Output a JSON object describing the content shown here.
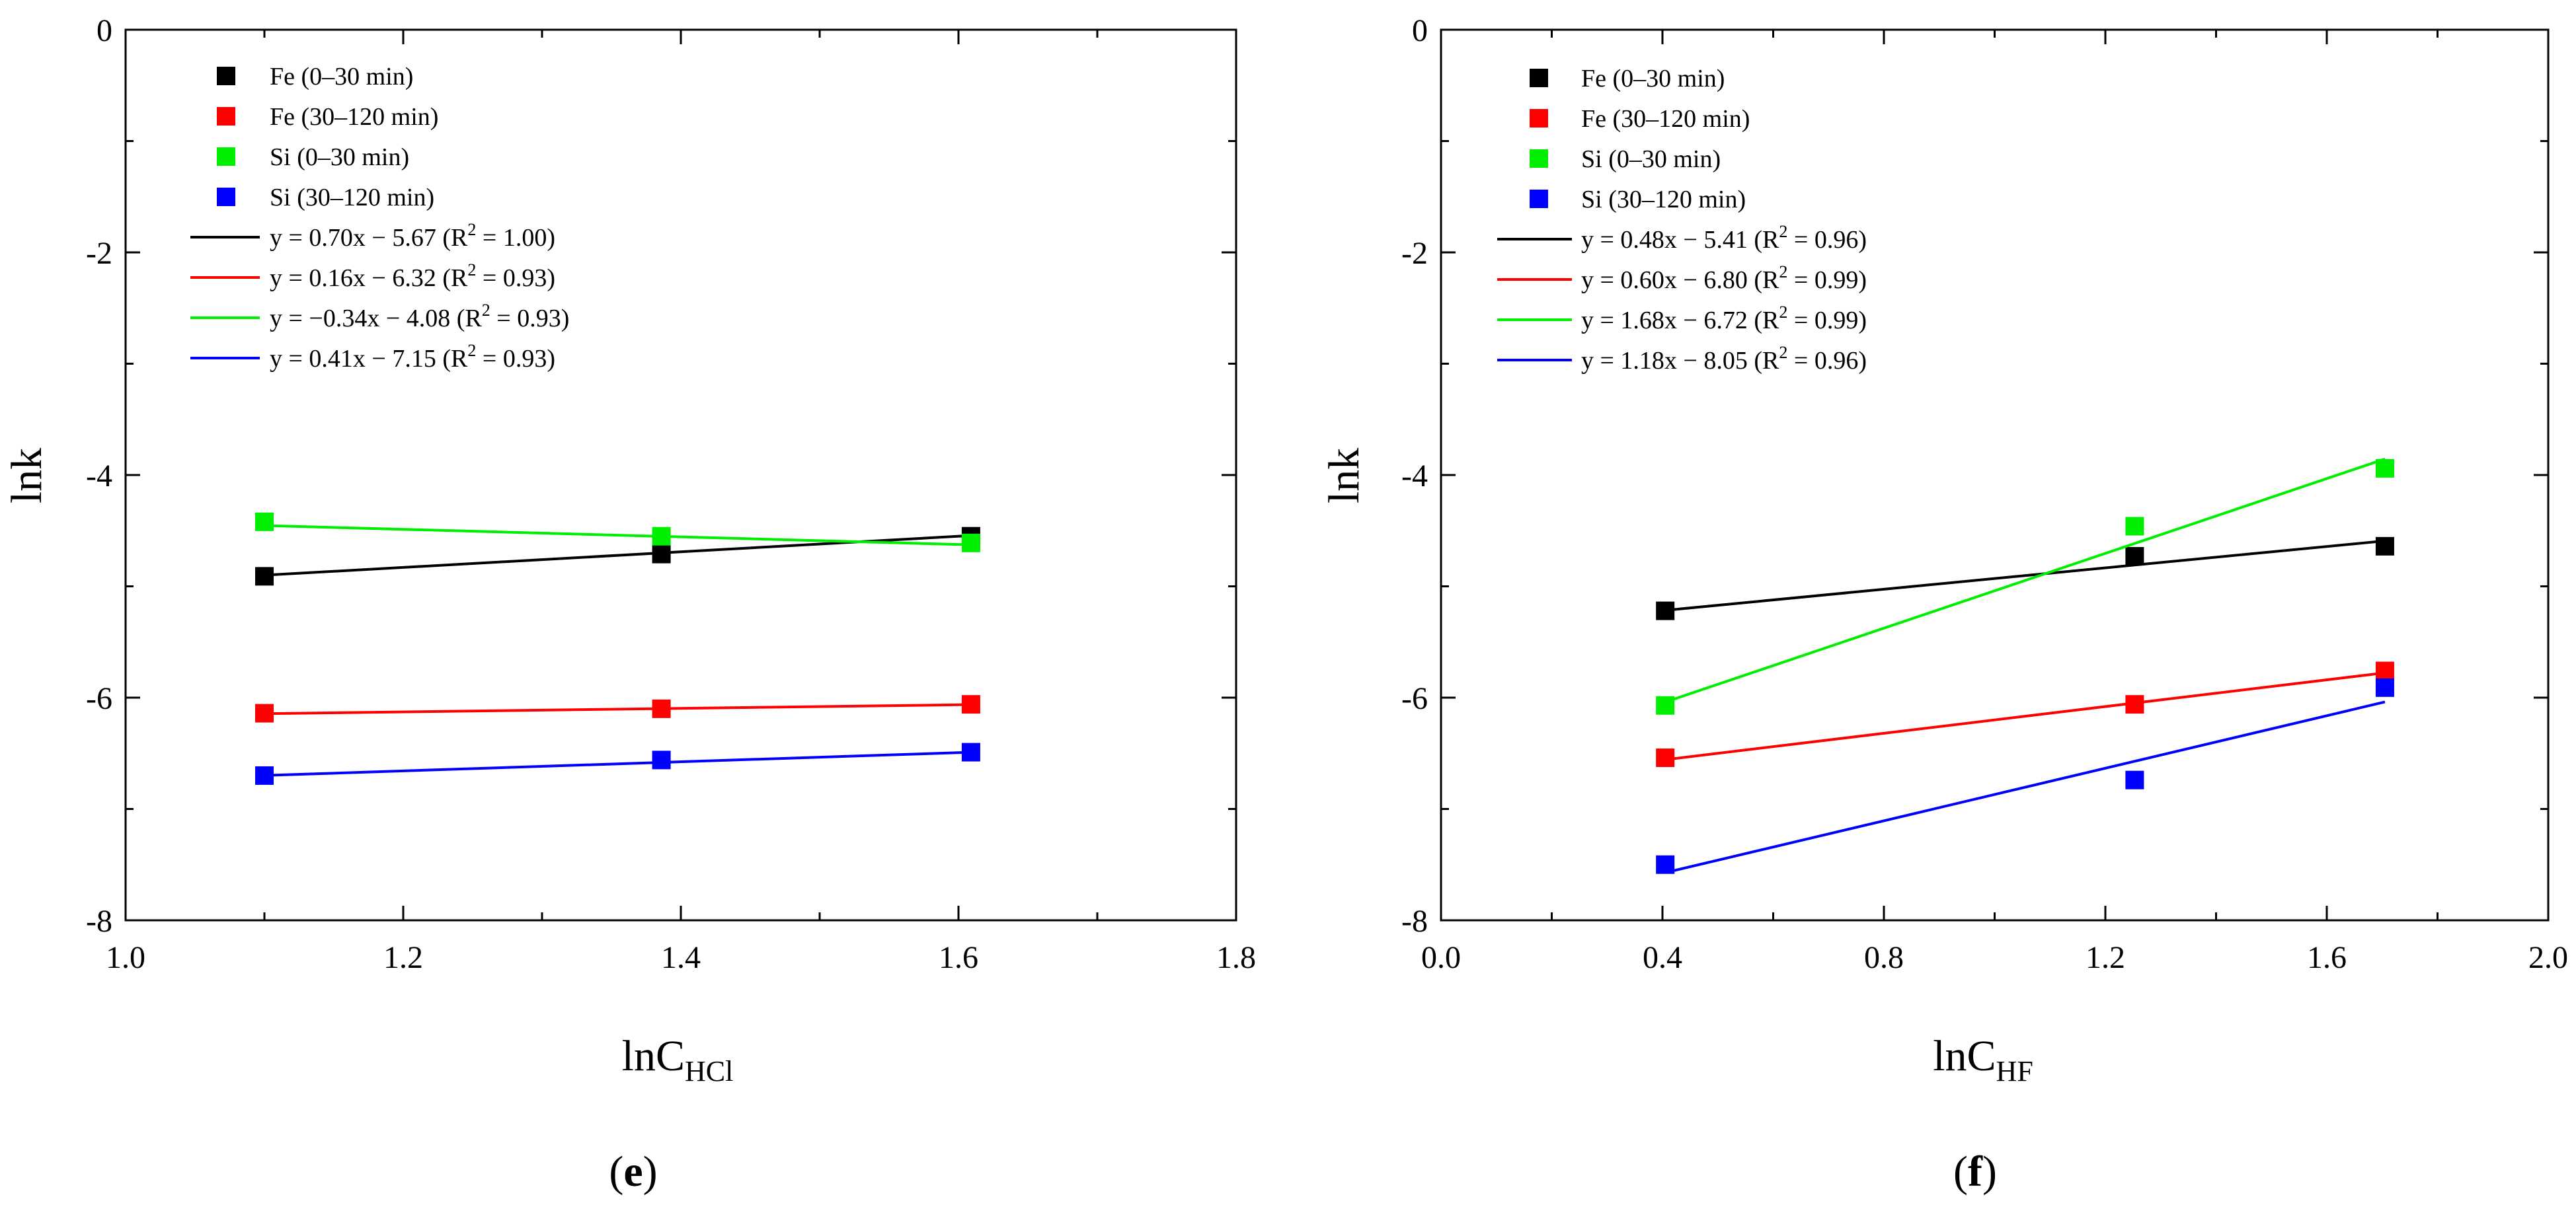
{
  "chart_data": [
    {
      "type": "scatter",
      "panel_label": "(e)",
      "panel_label_parts": [
        "(",
        "e",
        ")"
      ],
      "ylabel": "lnk",
      "xlabel_main": "lnC",
      "xlabel_sub": "HCl",
      "xlim": [
        1.0,
        1.8
      ],
      "ylim": [
        -8,
        0
      ],
      "xticks": [
        1.0,
        1.2,
        1.4,
        1.6,
        1.8
      ],
      "xtick_labels": [
        "1.0",
        "1.2",
        "1.4",
        "1.6",
        "1.8"
      ],
      "yticks": [
        -8,
        -6,
        -4,
        -2,
        0
      ],
      "ytick_labels": [
        "-8",
        "-6",
        "-4",
        "-2",
        "0"
      ],
      "grid": false,
      "legend_position": "top-left",
      "series": [
        {
          "name": "Fe (0–30 min)",
          "color": "#000000",
          "x": [
            1.1,
            1.386,
            1.609
          ],
          "y": [
            -4.91,
            -4.71,
            -4.55
          ],
          "fit": {
            "slope": 0.7,
            "intercept": -5.67,
            "eq": "y = 0.70x − 5.67",
            "r2": "1.00"
          }
        },
        {
          "name": "Fe (30–120 min)",
          "color": "#ff0000",
          "x": [
            1.1,
            1.386,
            1.609
          ],
          "y": [
            -6.14,
            -6.1,
            -6.06
          ],
          "fit": {
            "slope": 0.16,
            "intercept": -6.32,
            "eq": "y = 0.16x − 6.32",
            "r2": "0.93"
          }
        },
        {
          "name": "Si (0–30 min)",
          "color": "#00ee00",
          "x": [
            1.1,
            1.386,
            1.609
          ],
          "y": [
            -4.42,
            -4.55,
            -4.61
          ],
          "fit": {
            "slope": -0.34,
            "intercept": -4.08,
            "eq": "y = −0.34x − 4.08",
            "r2": "0.93"
          }
        },
        {
          "name": "Si (30–120 min)",
          "color": "#0000ff",
          "x": [
            1.1,
            1.386,
            1.609
          ],
          "y": [
            -6.7,
            -6.56,
            -6.49
          ],
          "fit": {
            "slope": 0.41,
            "intercept": -7.15,
            "eq": "y = 0.41x − 7.15",
            "r2": "0.93"
          }
        }
      ]
    },
    {
      "type": "scatter",
      "panel_label": "(f)",
      "panel_label_parts": [
        "(",
        "f",
        ")"
      ],
      "ylabel": "lnk",
      "xlabel_main": "lnC",
      "xlabel_sub": "HF",
      "xlim": [
        0.0,
        2.0
      ],
      "ylim": [
        -8,
        0
      ],
      "xticks": [
        0.0,
        0.4,
        0.8,
        1.2,
        1.6,
        2.0
      ],
      "xtick_labels": [
        "0.0",
        "0.4",
        "0.8",
        "1.2",
        "1.6",
        "2.0"
      ],
      "yticks": [
        -8,
        -6,
        -4,
        -2,
        0
      ],
      "ytick_labels": [
        "-8",
        "-6",
        "-4",
        "-2",
        "0"
      ],
      "grid": false,
      "legend_position": "top-left",
      "series": [
        {
          "name": "Fe (0–30 min)",
          "color": "#000000",
          "x": [
            0.405,
            1.253,
            1.705
          ],
          "y": [
            -5.22,
            -4.73,
            -4.64
          ],
          "fit": {
            "slope": 0.48,
            "intercept": -5.41,
            "eq": "y = 0.48x − 5.41",
            "r2": "0.96"
          }
        },
        {
          "name": "Fe (30–120 min)",
          "color": "#ff0000",
          "x": [
            0.405,
            1.253,
            1.705
          ],
          "y": [
            -6.54,
            -6.06,
            -5.76
          ],
          "fit": {
            "slope": 0.6,
            "intercept": -6.8,
            "eq": "y = 0.60x − 6.80",
            "r2": "0.99"
          }
        },
        {
          "name": "Si (0–30 min)",
          "color": "#00ee00",
          "x": [
            0.405,
            1.253,
            1.705
          ],
          "y": [
            -6.07,
            -4.46,
            -3.94
          ],
          "fit": {
            "slope": 1.68,
            "intercept": -6.72,
            "eq": "y = 1.68x − 6.72",
            "r2": "0.99"
          }
        },
        {
          "name": "Si (30–120 min)",
          "color": "#0000ff",
          "x": [
            0.405,
            1.253,
            1.705
          ],
          "y": [
            -7.5,
            -6.74,
            -5.91
          ],
          "fit": {
            "slope": 1.18,
            "intercept": -8.05,
            "eq": "y = 1.18x − 8.05",
            "r2": "0.96"
          }
        }
      ]
    }
  ]
}
